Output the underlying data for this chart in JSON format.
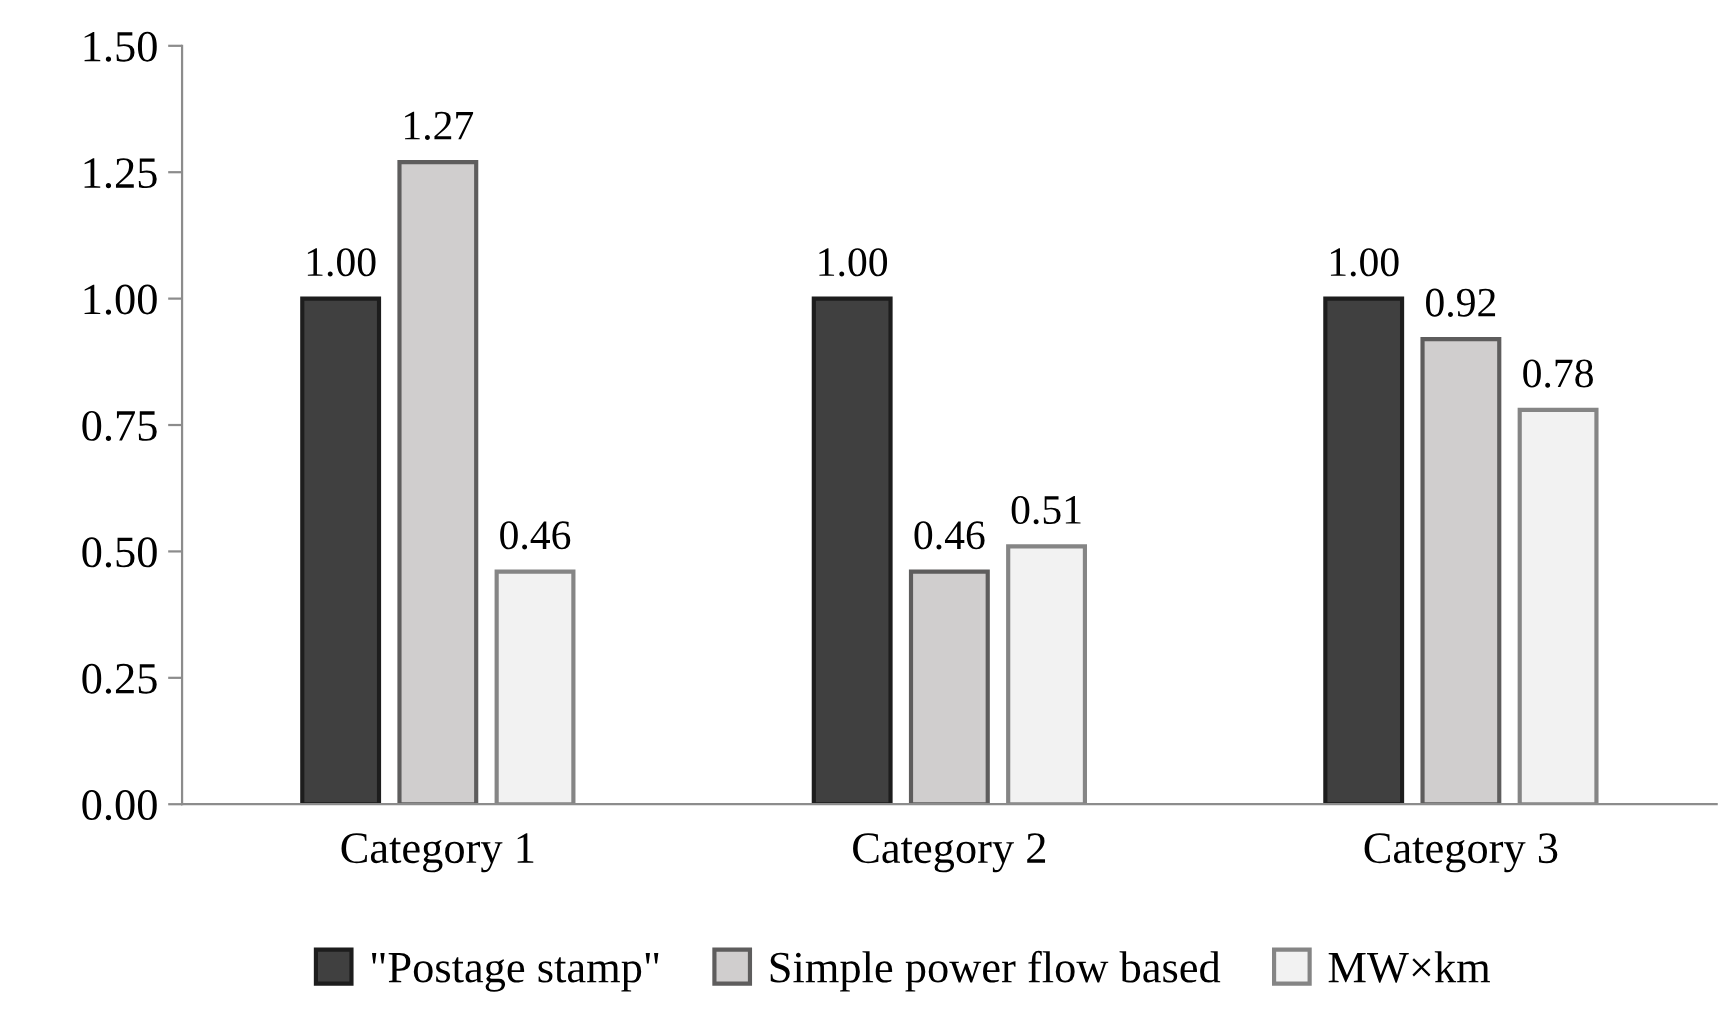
{
  "chart_data": {
    "type": "bar",
    "categories": [
      "Category 1",
      "Category 2",
      "Category 3"
    ],
    "series": [
      {
        "name": "\"Postage stamp\"",
        "color": "#404040",
        "values": [
          1.0,
          1.0,
          1.0
        ],
        "value_labels": [
          "1.00",
          "1.00",
          "1.00"
        ]
      },
      {
        "name": "Simple power flow based",
        "color": "#d0cece",
        "values": [
          1.27,
          0.46,
          0.92
        ],
        "value_labels": [
          "1.27",
          "0.46",
          "0.92"
        ]
      },
      {
        "name": "MW×km",
        "color": "#f2f2f2",
        "values": [
          0.46,
          0.51,
          0.78
        ],
        "value_labels": [
          "0.46",
          "0.51",
          "0.78"
        ]
      }
    ],
    "ylim": [
      0,
      1.5
    ],
    "yticks": [
      {
        "value": 0,
        "label": "0.00"
      },
      {
        "value": 0.25,
        "label": "0.25"
      },
      {
        "value": 0.5,
        "label": "0.50"
      },
      {
        "value": 0.75,
        "label": "0.75"
      },
      {
        "value": 1.0,
        "label": "1.00"
      },
      {
        "value": 1.25,
        "label": "1.25"
      },
      {
        "value": 1.5,
        "label": "1.50"
      }
    ],
    "grid": false,
    "legend": "bottom"
  }
}
